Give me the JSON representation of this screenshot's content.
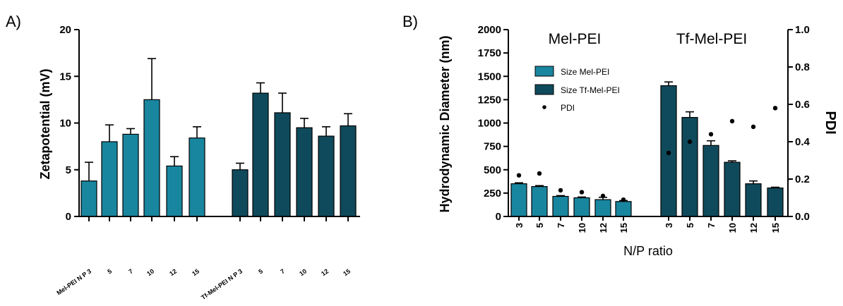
{
  "colors": {
    "mel": "#19869f",
    "tf": "#0f4a5c",
    "edge": "#000000"
  },
  "chart_data": [
    {
      "panel": "A)",
      "type": "bar",
      "ylabel": "Zetapotential (mV)",
      "ylim": [
        0,
        20
      ],
      "yticks": [
        0,
        5,
        10,
        15,
        20
      ],
      "categories": [
        "Mel-PEI N P 3",
        "5",
        "7",
        "10",
        "12",
        "15",
        "Tf-Mel-PEI N P 3",
        "5",
        "7",
        "10",
        "12",
        "15"
      ],
      "series": [
        {
          "values": [
            3.8,
            8.0,
            8.8,
            12.5,
            5.4,
            8.4,
            null,
            null,
            null,
            null,
            null,
            null
          ],
          "errors": [
            2.0,
            1.8,
            0.6,
            4.4,
            1.0,
            1.2,
            null,
            null,
            null,
            null,
            null,
            null
          ],
          "color": "#19869f"
        },
        {
          "values": [
            null,
            null,
            null,
            null,
            null,
            null,
            5.0,
            13.2,
            11.1,
            9.5,
            8.6,
            9.7
          ],
          "errors": [
            null,
            null,
            null,
            null,
            null,
            null,
            0.7,
            1.1,
            2.1,
            1.0,
            1.0,
            1.3
          ],
          "color": "#0f4a5c"
        }
      ]
    },
    {
      "panel": "B)",
      "type": "bar",
      "xlabel": "N/P ratio",
      "ylabel": "Hydrodynamic Diameter (nm)",
      "ylabel_right": "PDI",
      "ylim": [
        0,
        2000
      ],
      "ylim_right": [
        0,
        1.0
      ],
      "yticks": [
        0,
        250,
        500,
        750,
        1000,
        1250,
        1500,
        1750,
        2000
      ],
      "yticks_right": [
        "0.0",
        "0.2",
        "0.4",
        "0.6",
        "0.8",
        "1.0"
      ],
      "group_titles": [
        "Mel-PEI",
        "Tf-Mel-PEI"
      ],
      "categories": [
        "3",
        "5",
        "7",
        "10",
        "12",
        "15",
        "3",
        "5",
        "7",
        "10",
        "12",
        "15"
      ],
      "legend_position": "upper-left",
      "series": [
        {
          "name": "Size Mel-PEI",
          "color": "#19869f",
          "values": [
            350,
            320,
            215,
            200,
            180,
            160,
            null,
            null,
            null,
            null,
            null,
            null
          ],
          "errors": [
            10,
            10,
            8,
            8,
            25,
            10,
            null,
            null,
            null,
            null,
            null,
            null
          ]
        },
        {
          "name": "Size Tf-Mel-PEI",
          "color": "#0f4a5c",
          "values": [
            null,
            null,
            null,
            null,
            null,
            null,
            1400,
            1060,
            760,
            580,
            350,
            305
          ],
          "errors": [
            null,
            null,
            null,
            null,
            null,
            null,
            40,
            60,
            50,
            15,
            30,
            8
          ]
        },
        {
          "name": "PDI",
          "type": "scatter",
          "axis": "right",
          "color": "#000000",
          "values": [
            0.22,
            0.23,
            0.14,
            0.13,
            0.11,
            0.09,
            0.34,
            0.4,
            0.44,
            0.51,
            0.48,
            0.58
          ]
        }
      ]
    }
  ]
}
